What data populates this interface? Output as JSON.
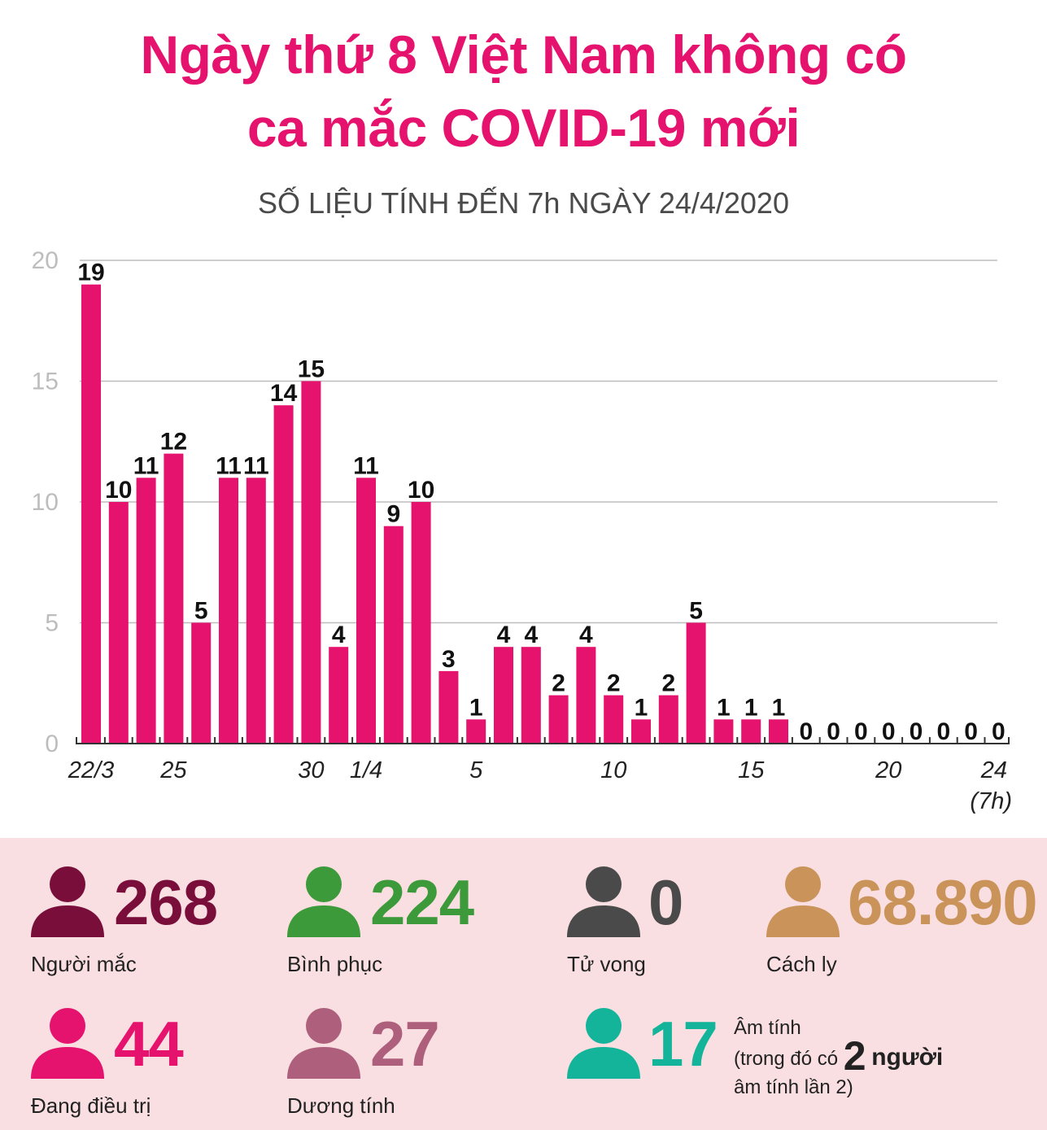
{
  "title": {
    "line1": "Ngày thứ 8 Việt Nam không có",
    "line2": "ca mắc COVID-19 mới"
  },
  "subtitle": "SỐ LIỆU TÍNH ĐẾN 7h NGÀY 24/4/2020",
  "chart_data": {
    "type": "bar",
    "title": "Ngày thứ 8 Việt Nam không có ca mắc COVID-19 mới",
    "subtitle": "SỐ LIỆU TÍNH ĐẾN 7h NGÀY 24/4/2020",
    "xlabel": "",
    "ylabel": "",
    "ylim": [
      0,
      20
    ],
    "yticks": [
      0,
      5,
      10,
      15,
      20
    ],
    "grid": true,
    "categories": [
      "22/3",
      "23/3",
      "24/3",
      "25/3",
      "26/3",
      "27/3",
      "28/3",
      "29/3",
      "30/3",
      "31/3",
      "1/4",
      "2/4",
      "3/4",
      "4/4",
      "5/4",
      "6/4",
      "7/4",
      "8/4",
      "9/4",
      "10/4",
      "11/4",
      "12/4",
      "13/4",
      "14/4",
      "15/4",
      "16/4",
      "17/4",
      "18/4",
      "19/4",
      "20/4",
      "21/4",
      "22/4",
      "23/4",
      "24/4 (7h)"
    ],
    "values": [
      19,
      10,
      11,
      12,
      5,
      11,
      11,
      14,
      15,
      4,
      11,
      9,
      10,
      3,
      1,
      4,
      4,
      2,
      4,
      2,
      1,
      2,
      5,
      1,
      1,
      1,
      0,
      0,
      0,
      0,
      0,
      0,
      0,
      0
    ],
    "xtick_labels": [
      {
        "index": 0,
        "text": "22/3"
      },
      {
        "index": 3,
        "text": "25"
      },
      {
        "index": 8,
        "text": "30"
      },
      {
        "index": 10,
        "text": "1/4"
      },
      {
        "index": 14,
        "text": "5"
      },
      {
        "index": 19,
        "text": "10"
      },
      {
        "index": 24,
        "text": "15"
      },
      {
        "index": 29,
        "text": "20"
      },
      {
        "index": 33,
        "text": "24",
        "sub": "(7h)"
      }
    ],
    "bar_color": "#e5126e"
  },
  "stats": [
    {
      "key": "cases",
      "value": "268",
      "label": "Người mắc",
      "color": "#7a0e3b"
    },
    {
      "key": "recovered",
      "value": "224",
      "label": "Bình phục",
      "color": "#3c9a3a"
    },
    {
      "key": "deaths",
      "value": "0",
      "label": "Tử vong",
      "color": "#4a4a4a"
    },
    {
      "key": "quarantine",
      "value": "68.890",
      "label": "Cách ly",
      "color": "#c9935a"
    },
    {
      "key": "treating",
      "value": "44",
      "label": "Đang điều trị",
      "color": "#e5126e"
    },
    {
      "key": "positive",
      "value": "27",
      "label": "Dương tính",
      "color": "#ad5f7c"
    },
    {
      "key": "negative",
      "value": "17",
      "color": "#14b49a"
    }
  ],
  "negative_note": {
    "line1": "Âm tính",
    "line2_pre": "(trong đó có",
    "line2_num": "2",
    "line2_post": "người",
    "line3": "âm tính lần 2)"
  }
}
